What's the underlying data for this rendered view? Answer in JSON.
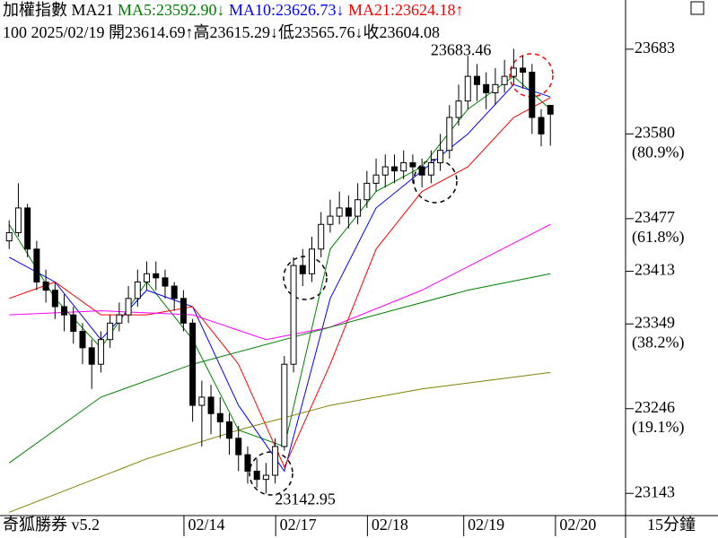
{
  "chart_data": {
    "type": "candlestick",
    "title": "加權指數",
    "indicator": "MA21",
    "legend_items": [
      {
        "text": "MA5:23592.90↓",
        "color": "#008000"
      },
      {
        "text": "MA10:23626.73↓",
        "color": "#0000ff"
      },
      {
        "text": "MA21:23624.18↑",
        "color": "#ff0000"
      }
    ],
    "info": "100 2025/02/19 開23614.69↑高23615.29↓低23565.76↓收23604.08",
    "brand": "奇狐勝券 v5.2",
    "period": "15分鐘",
    "ylim": [
      23116,
      23721
    ],
    "xlim": [
      -1,
      67
    ],
    "yticks": [
      23683,
      23580,
      23477,
      23413,
      23349,
      23246,
      23143
    ],
    "level_labels": [
      {
        "value": 23580,
        "label": "(80.9%)"
      },
      {
        "value": 23477,
        "label": "(61.8%)"
      },
      {
        "value": 23349,
        "label": "(38.2%)"
      },
      {
        "value": 23246,
        "label": "(19.1%)"
      }
    ],
    "xticks": [
      {
        "value": 21.5,
        "label": "02/14"
      },
      {
        "value": 31.5,
        "label": "02/17"
      },
      {
        "value": 41.5,
        "label": "02/18"
      },
      {
        "value": 52,
        "label": "02/19"
      },
      {
        "value": 62,
        "label": "02/20"
      }
    ],
    "open": [
      23450,
      23460,
      23490,
      23440,
      23400,
      23390,
      23370,
      23360,
      23340,
      23320,
      23300,
      23330,
      23350,
      23360,
      23380,
      23400,
      23410,
      23405,
      23395,
      23380,
      23350,
      23250,
      23260,
      23240,
      23230,
      23210,
      23190,
      23170,
      23160,
      23165,
      23200,
      23300,
      23420,
      23410,
      23440,
      23470,
      23480,
      23490,
      23480,
      23500,
      23520,
      23530,
      23540,
      23535,
      23545,
      23540,
      23530,
      23545,
      23560,
      23600,
      23620,
      23650,
      23640,
      23630,
      23640,
      23650,
      23660,
      23655,
      23600,
      23614.69
    ],
    "high": [
      23475,
      23520,
      23495,
      23450,
      23415,
      23400,
      23385,
      23370,
      23350,
      23330,
      23340,
      23360,
      23375,
      23395,
      23415,
      23425,
      23425,
      23415,
      23400,
      23390,
      23355,
      23280,
      23275,
      23260,
      23240,
      23225,
      23200,
      23185,
      23180,
      23210,
      23310,
      23430,
      23440,
      23455,
      23485,
      23500,
      23510,
      23505,
      23520,
      23535,
      23550,
      23555,
      23555,
      23560,
      23555,
      23550,
      23560,
      23580,
      23615,
      23640,
      23675,
      23665,
      23655,
      23660,
      23670,
      23683.46,
      23675,
      23665,
      23610,
      23615.29
    ],
    "low": [
      23440,
      23455,
      23430,
      23390,
      23375,
      23355,
      23340,
      23325,
      23300,
      23270,
      23290,
      23320,
      23340,
      23350,
      23370,
      23390,
      23390,
      23380,
      23365,
      23340,
      23230,
      23200,
      23215,
      23210,
      23190,
      23170,
      23155,
      23150,
      23142.95,
      23155,
      23195,
      23290,
      23395,
      23400,
      23430,
      23460,
      23470,
      23465,
      23470,
      23490,
      23510,
      23515,
      23520,
      23525,
      23520,
      23515,
      23520,
      23535,
      23550,
      23590,
      23610,
      23620,
      23610,
      23615,
      23630,
      23640,
      23635,
      23580,
      23565,
      23565.76
    ],
    "close": [
      23460,
      23490,
      23440,
      23400,
      23390,
      23370,
      23360,
      23340,
      23320,
      23300,
      23330,
      23350,
      23360,
      23380,
      23400,
      23410,
      23405,
      23395,
      23380,
      23350,
      23250,
      23260,
      23240,
      23230,
      23210,
      23190,
      23170,
      23160,
      23165,
      23200,
      23300,
      23420,
      23410,
      23440,
      23470,
      23480,
      23490,
      23480,
      23500,
      23520,
      23530,
      23540,
      23535,
      23545,
      23540,
      23530,
      23545,
      23560,
      23600,
      23620,
      23650,
      23640,
      23630,
      23640,
      23650,
      23660,
      23655,
      23600,
      23580,
      23604.08
    ],
    "series": [
      {
        "color": "#008000",
        "x": [
          0,
          5,
          10,
          15,
          20,
          25,
          30,
          35,
          40,
          45,
          50,
          55,
          59
        ],
        "values": [
          23470,
          23380,
          23320,
          23400,
          23330,
          23220,
          23200,
          23440,
          23510,
          23540,
          23610,
          23650,
          23610
        ]
      },
      {
        "color": "#0000ff",
        "x": [
          0,
          5,
          10,
          15,
          20,
          25,
          30,
          35,
          40,
          45,
          50,
          55,
          59
        ],
        "values": [
          23430,
          23400,
          23330,
          23390,
          23370,
          23250,
          23170,
          23380,
          23490,
          23535,
          23580,
          23640,
          23625
        ]
      },
      {
        "color": "#ff0000",
        "x": [
          0,
          5,
          10,
          15,
          20,
          25,
          30,
          35,
          40,
          45,
          50,
          55,
          59
        ],
        "values": [
          23380,
          23400,
          23360,
          23360,
          23370,
          23300,
          23175,
          23300,
          23440,
          23510,
          23540,
          23600,
          23624
        ]
      },
      {
        "color": "#ff00ff",
        "x": [
          0,
          10,
          20,
          28,
          35,
          45,
          59
        ],
        "values": [
          23360,
          23365,
          23360,
          23330,
          23345,
          23390,
          23470
        ]
      },
      {
        "color": "#008000",
        "x": [
          0,
          10,
          20,
          30,
          40,
          50,
          59
        ],
        "values": [
          23180,
          23260,
          23300,
          23330,
          23360,
          23390,
          23410
        ]
      },
      {
        "color": "#808000",
        "x": [
          0,
          15,
          25,
          35,
          45,
          59
        ],
        "values": [
          23120,
          23185,
          23220,
          23250,
          23270,
          23290
        ]
      }
    ],
    "annotations": [
      {
        "x": 55,
        "value": 23683.46,
        "label": "23683.46"
      },
      {
        "x": 28,
        "value": 23142.95,
        "label": "23142.95"
      }
    ]
  }
}
